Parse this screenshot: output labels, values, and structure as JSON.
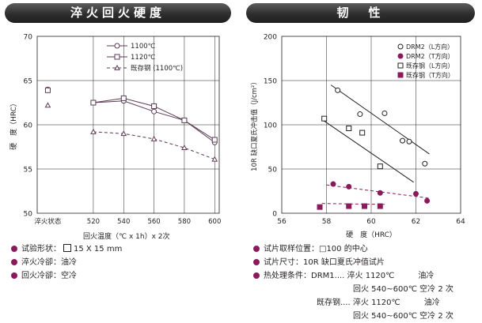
{
  "left": {
    "header": "淬火回火硬度",
    "notes": [
      {
        "text": "试验形状：",
        "box": true,
        "after": "15 X 15 mm"
      },
      {
        "text": "淬火冷卻：油冷"
      },
      {
        "text": "回火冷卻：空冷"
      }
    ]
  },
  "right": {
    "header": "韧　性",
    "notes": [
      {
        "text": "试片取样位置：□100 的中心"
      },
      {
        "text": "试片尺寸：10R 缺口夏氏冲值试片"
      },
      {
        "text": "热处理条件：DRM1.... 淬火 1120℃　　　油冷"
      },
      {
        "text": "回火 540~600℃ 空冷 2 次"
      },
      {
        "text": "既存钢.... 淬火 1120℃　　　油冷"
      },
      {
        "text": "回火 540~600℃ 空冷 2 次"
      }
    ]
  },
  "chart_data": [
    {
      "type": "line",
      "title": "淬火回火硬度",
      "xlabel": "回火温度（℃ x 1h）x 2次",
      "ylabel": "硬　度（HRC）",
      "x_ticks": [
        "淬火状态",
        "520",
        "540",
        "560",
        "580",
        "600"
      ],
      "x_tick_values": [
        490,
        520,
        540,
        560,
        580,
        600
      ],
      "xlim": [
        483,
        603
      ],
      "ylim": [
        50,
        70
      ],
      "y_ticks": [
        50,
        55,
        60,
        65,
        70
      ],
      "legend_position": "top-right",
      "series": [
        {
          "name": "1100℃",
          "marker": "circle",
          "as_quenched": 64.0,
          "points": [
            [
              520,
              62.5
            ],
            [
              540,
              62.7
            ],
            [
              560,
              61.5
            ],
            [
              580,
              60.5
            ],
            [
              600,
              58.0
            ]
          ]
        },
        {
          "name": "1120℃",
          "marker": "square",
          "as_quenched": 63.9,
          "points": [
            [
              520,
              62.5
            ],
            [
              540,
              63.0
            ],
            [
              560,
              62.1
            ],
            [
              580,
              60.5
            ],
            [
              600,
              58.3
            ]
          ]
        },
        {
          "name": "既存钢 (1100℃)",
          "marker": "triangle",
          "as_quenched": 62.2,
          "points": [
            [
              520,
              59.2
            ],
            [
              540,
              59.0
            ],
            [
              560,
              58.4
            ],
            [
              580,
              57.4
            ],
            [
              600,
              56.1
            ]
          ]
        }
      ]
    },
    {
      "type": "scatter",
      "title": "韧　性",
      "xlabel": "硬　度（HRC）",
      "ylabel": "10R 缺口夏氏冲击值（J/cm²）",
      "xlim": [
        56,
        64
      ],
      "x_ticks": [
        56,
        58,
        60,
        62,
        64
      ],
      "ylim": [
        0,
        200
      ],
      "y_ticks": [
        0,
        50,
        100,
        150,
        200
      ],
      "legend_position": "top-right",
      "series": [
        {
          "name": "DRM2（L方向）",
          "marker": "open-circle",
          "points": [
            [
              58.5,
              139
            ],
            [
              59.5,
              112
            ],
            [
              60.6,
              113
            ],
            [
              61.4,
              82
            ],
            [
              61.7,
              81
            ],
            [
              62.4,
              56
            ]
          ],
          "trend": [
            [
              58.2,
              145
            ],
            [
              62.6,
              67
            ]
          ],
          "trend_style": "solid"
        },
        {
          "name": "DRM2（T方向）",
          "marker": "filled-circle",
          "points": [
            [
              58.3,
              33
            ],
            [
              59.0,
              30
            ],
            [
              60.4,
              23
            ],
            [
              62.0,
              22
            ],
            [
              62.5,
              14
            ]
          ],
          "trend": [
            [
              58.0,
              32
            ],
            [
              62.6,
              17
            ]
          ],
          "trend_style": "dashed"
        },
        {
          "name": "既存钢（L方向）",
          "marker": "open-square",
          "points": [
            [
              57.9,
              107
            ],
            [
              59.0,
              96
            ],
            [
              59.6,
              91
            ],
            [
              60.4,
              53
            ]
          ],
          "trend": [
            [
              57.8,
              106
            ],
            [
              61.9,
              35
            ]
          ],
          "trend_style": "solid"
        },
        {
          "name": "既存钢（T方向）",
          "marker": "filled-square",
          "points": [
            [
              57.7,
              7
            ],
            [
              59.0,
              8
            ],
            [
              59.7,
              8
            ],
            [
              60.4,
              8
            ]
          ],
          "trend": [
            [
              57.8,
              11
            ],
            [
              60.6,
              10
            ]
          ],
          "trend_style": "dashed"
        }
      ],
      "colors": {
        "filled": "#8b1a5a"
      }
    }
  ]
}
